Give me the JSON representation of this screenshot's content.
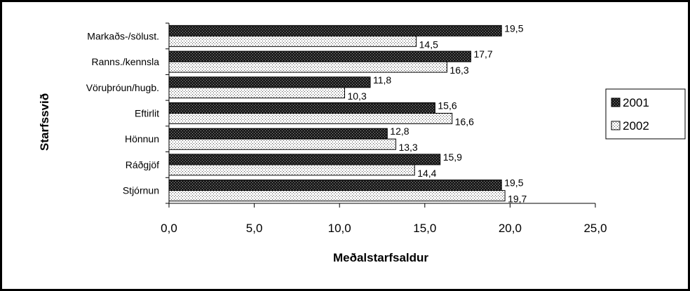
{
  "chart_data": {
    "type": "bar",
    "orientation": "horizontal",
    "ylabel": "Starfssvið",
    "xlabel": "Meðalstarfsaldur",
    "xlim": [
      0,
      25
    ],
    "xticks": [
      "0,0",
      "5,0",
      "10,0",
      "15,0",
      "20,0",
      "25,0"
    ],
    "grid": false,
    "legend_position": "right",
    "categories": [
      "Markaðs-/sölust.",
      "Ranns./kennsla",
      "Vöruþróun/hugb.",
      "Eftirlit",
      "Hönnun",
      "Ráðgjöf",
      "Stjórnun"
    ],
    "series": [
      {
        "name": "2001",
        "values": [
          19.5,
          17.7,
          11.8,
          15.6,
          12.8,
          15.9,
          19.5
        ],
        "labels": [
          "19,5",
          "17,7",
          "11,8",
          "15,6",
          "12,8",
          "15,9",
          "19,5"
        ],
        "pattern": "dark-dotted",
        "color": "#1a1a1a"
      },
      {
        "name": "2002",
        "values": [
          14.5,
          16.3,
          10.3,
          16.6,
          13.3,
          14.4,
          19.7
        ],
        "labels": [
          "14,5",
          "16,3",
          "10,3",
          "16,6",
          "13,3",
          "14,4",
          "19,7"
        ],
        "pattern": "light-dotted",
        "color": "#ffffff"
      }
    ]
  }
}
